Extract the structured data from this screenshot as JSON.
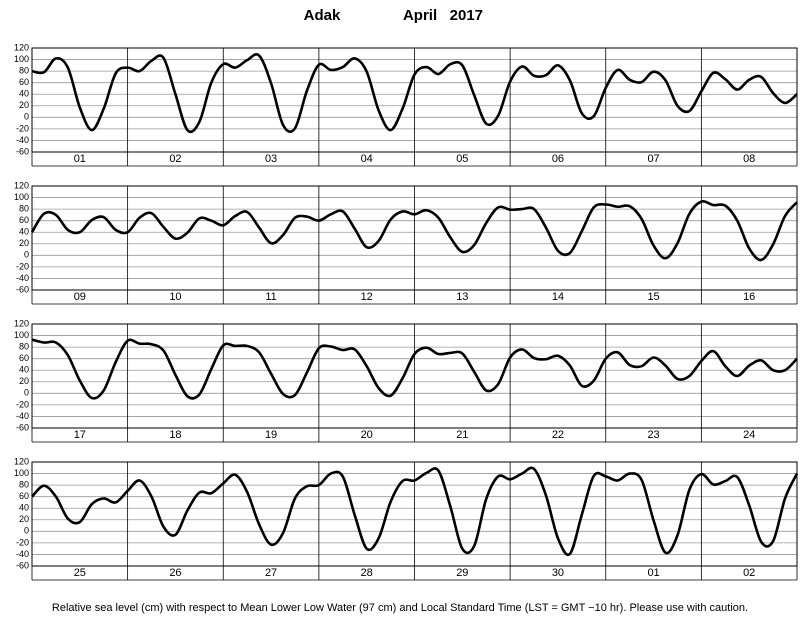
{
  "title": "Adak",
  "date": "April   2017",
  "caption": "Relative sea level (cm) with respect to Mean Lower Low Water (97 cm) and Local Standard Time (LST = GMT −10 hr). Please use with caution.",
  "chart_data": [
    {
      "type": "line",
      "color": "#000000",
      "grid": true,
      "categories": [
        "01",
        "02",
        "03",
        "04",
        "05",
        "06",
        "07",
        "08"
      ],
      "x": [
        0,
        3,
        6,
        9,
        12,
        15,
        18,
        21,
        24,
        27,
        30,
        33,
        36,
        39,
        42,
        45,
        48,
        51,
        54,
        57,
        60,
        63,
        66,
        69,
        72,
        75,
        78,
        81,
        84,
        87,
        90,
        93,
        96,
        99,
        102,
        105,
        108,
        111,
        114,
        117,
        120,
        123,
        126,
        129,
        132,
        135,
        138,
        141,
        144,
        147,
        150,
        153,
        156,
        159,
        162,
        165,
        168,
        171,
        174,
        177,
        180,
        183,
        186,
        189,
        192
      ],
      "values": [
        80,
        78,
        102,
        86,
        17,
        -22,
        15,
        76,
        86,
        80,
        98,
        103,
        40,
        -22,
        -8,
        60,
        92,
        86,
        99,
        107,
        59,
        -13,
        -19,
        46,
        91,
        82,
        87,
        102,
        79,
        12,
        -22,
        15,
        74,
        87,
        75,
        92,
        90,
        38,
        -11,
        3,
        62,
        88,
        72,
        73,
        90,
        64,
        7,
        2,
        51,
        82,
        65,
        61,
        79,
        64,
        20,
        11,
        45,
        77,
        66,
        48,
        65,
        70,
        42,
        25,
        40
      ],
      "xlim": [
        0,
        192
      ],
      "xticks": [
        24,
        48,
        72,
        96,
        120,
        144,
        168
      ],
      "ylim": [
        -60,
        120
      ],
      "yticks": [
        -60,
        -40,
        -20,
        0,
        20,
        40,
        60,
        80,
        100,
        120
      ]
    },
    {
      "type": "line",
      "color": "#000000",
      "grid": true,
      "categories": [
        "09",
        "10",
        "11",
        "12",
        "13",
        "14",
        "15",
        "16"
      ],
      "x": [
        0,
        3,
        6,
        9,
        12,
        15,
        18,
        21,
        24,
        27,
        30,
        33,
        36,
        39,
        42,
        45,
        48,
        51,
        54,
        57,
        60,
        63,
        66,
        69,
        72,
        75,
        78,
        81,
        84,
        87,
        90,
        93,
        96,
        99,
        102,
        105,
        108,
        111,
        114,
        117,
        120,
        123,
        126,
        129,
        132,
        135,
        138,
        141,
        144,
        147,
        150,
        153,
        156,
        159,
        162,
        165,
        168,
        171,
        174,
        177,
        180,
        183,
        186,
        189,
        192
      ],
      "values": [
        40,
        72,
        70,
        44,
        40,
        61,
        66,
        44,
        40,
        65,
        73,
        49,
        29,
        39,
        64,
        60,
        52,
        68,
        75,
        48,
        21,
        35,
        65,
        67,
        60,
        71,
        76,
        46,
        14,
        25,
        62,
        76,
        71,
        78,
        65,
        31,
        6,
        18,
        56,
        83,
        79,
        80,
        80,
        48,
        8,
        4,
        42,
        83,
        88,
        84,
        85,
        63,
        17,
        -5,
        21,
        72,
        93,
        87,
        86,
        60,
        12,
        -8,
        19,
        68,
        92
      ],
      "xlim": [
        0,
        192
      ],
      "xticks": [
        24,
        48,
        72,
        96,
        120,
        144,
        168
      ],
      "ylim": [
        -60,
        120
      ],
      "yticks": [
        -60,
        -40,
        -20,
        0,
        20,
        40,
        60,
        80,
        100,
        120
      ]
    },
    {
      "type": "line",
      "color": "#000000",
      "grid": true,
      "categories": [
        "17",
        "18",
        "19",
        "20",
        "21",
        "22",
        "23",
        "24"
      ],
      "x": [
        0,
        3,
        6,
        9,
        12,
        15,
        18,
        21,
        24,
        27,
        30,
        33,
        36,
        39,
        42,
        45,
        48,
        51,
        54,
        57,
        60,
        63,
        66,
        69,
        72,
        75,
        78,
        81,
        84,
        87,
        90,
        93,
        96,
        99,
        102,
        105,
        108,
        111,
        114,
        117,
        120,
        123,
        126,
        129,
        132,
        135,
        138,
        141,
        144,
        147,
        150,
        153,
        156,
        159,
        162,
        165,
        168,
        171,
        174,
        177,
        180,
        183,
        186,
        189,
        192
      ],
      "values": [
        93,
        88,
        88,
        66,
        22,
        -8,
        5,
        54,
        91,
        86,
        85,
        74,
        32,
        -5,
        -2,
        42,
        83,
        82,
        82,
        71,
        34,
        -1,
        -3,
        36,
        78,
        81,
        75,
        76,
        47,
        9,
        -4,
        26,
        68,
        79,
        68,
        70,
        69,
        37,
        5,
        16,
        62,
        76,
        61,
        59,
        65,
        48,
        13,
        22,
        60,
        71,
        49,
        47,
        62,
        48,
        25,
        30,
        56,
        73,
        47,
        30,
        48,
        57,
        40,
        40,
        60
      ],
      "xlim": [
        0,
        192
      ],
      "xticks": [
        24,
        48,
        72,
        96,
        120,
        144,
        168
      ],
      "ylim": [
        -60,
        120
      ],
      "yticks": [
        -60,
        -40,
        -20,
        0,
        20,
        40,
        60,
        80,
        100,
        120
      ]
    },
    {
      "type": "line",
      "color": "#000000",
      "grid": true,
      "categories": [
        "25",
        "26",
        "27",
        "28",
        "29",
        "30",
        "01",
        "02"
      ],
      "x": [
        0,
        3,
        6,
        9,
        12,
        15,
        18,
        21,
        24,
        27,
        30,
        33,
        36,
        39,
        42,
        45,
        48,
        51,
        54,
        57,
        60,
        63,
        66,
        69,
        72,
        75,
        78,
        81,
        84,
        87,
        90,
        93,
        96,
        99,
        102,
        105,
        108,
        111,
        114,
        117,
        120,
        123,
        126,
        129,
        132,
        135,
        138,
        141,
        144,
        147,
        150,
        153,
        156,
        159,
        162,
        165,
        168,
        171,
        174,
        177,
        180,
        183,
        186,
        189,
        192
      ],
      "values": [
        60,
        79,
        60,
        22,
        16,
        47,
        57,
        50,
        70,
        88,
        60,
        8,
        -6,
        36,
        67,
        66,
        83,
        98,
        68,
        12,
        -23,
        -3,
        57,
        78,
        80,
        100,
        95,
        28,
        -30,
        -12,
        51,
        87,
        88,
        101,
        105,
        43,
        -30,
        -25,
        56,
        95,
        90,
        100,
        108,
        62,
        -12,
        -39,
        29,
        96,
        95,
        88,
        100,
        89,
        19,
        -37,
        -7,
        72,
        99,
        81,
        87,
        94,
        45,
        -18,
        -17,
        57,
        100
      ],
      "xlim": [
        0,
        192
      ],
      "xticks": [
        24,
        48,
        72,
        96,
        120,
        144,
        168
      ],
      "ylim": [
        -60,
        120
      ],
      "yticks": [
        -60,
        -40,
        -20,
        0,
        20,
        40,
        60,
        80,
        100,
        120
      ]
    }
  ]
}
